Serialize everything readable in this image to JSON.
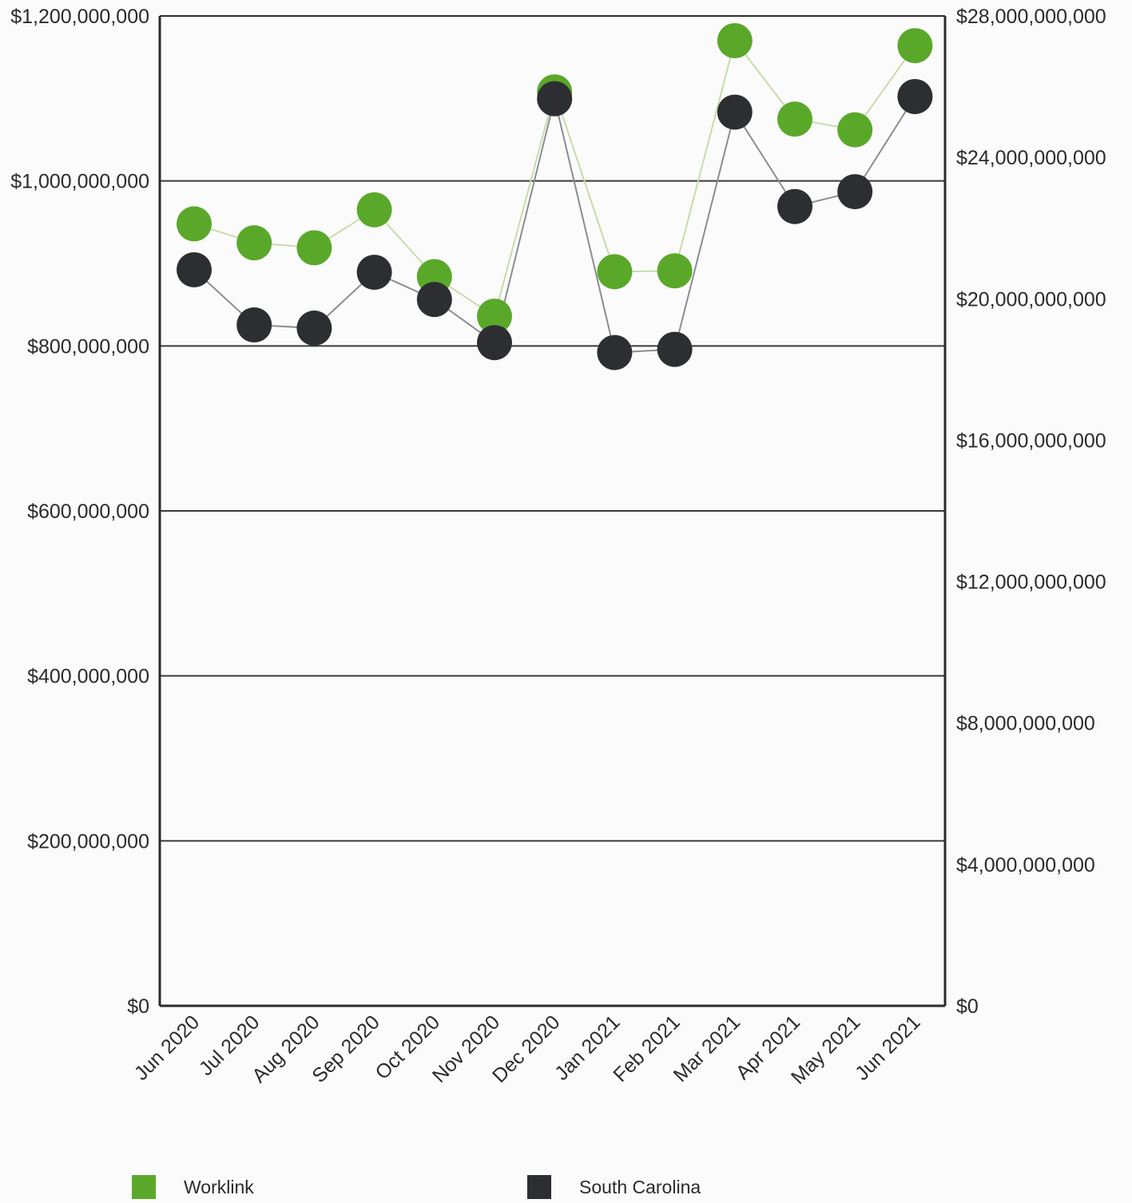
{
  "chart_data": {
    "type": "line",
    "categories": [
      "Jun 2020",
      "Jul 2020",
      "Aug 2020",
      "Sep 2020",
      "Oct 2020",
      "Nov 2020",
      "Dec 2020",
      "Jan 2021",
      "Feb 2021",
      "Mar 2021",
      "Apr 2021",
      "May 2021",
      "Jun 2021"
    ],
    "series": [
      {
        "name": "Worklink",
        "axis": "left",
        "color": "#5aa82a",
        "line_color": "#c8dca8",
        "values": [
          948000000,
          925000000,
          919000000,
          965000000,
          884000000,
          836000000,
          1108000000,
          890000000,
          891000000,
          1170000000,
          1075000000,
          1062000000,
          1164000000
        ]
      },
      {
        "name": "South Carolina",
        "axis": "right",
        "color": "#2c2e32",
        "line_color": "#8a8d93",
        "values": [
          20820000000,
          19260000000,
          19170000000,
          20750000000,
          19980000000,
          18760000000,
          25660000000,
          18480000000,
          18570000000,
          25280000000,
          22610000000,
          23030000000,
          25720000000
        ]
      }
    ],
    "y_left": {
      "ylim": [
        0,
        1200000000
      ],
      "ticks": [
        "$0",
        "$200,000,000",
        "$400,000,000",
        "$600,000,000",
        "$800,000,000",
        "$1,000,000,000",
        "$1,200,000,000"
      ]
    },
    "y_right": {
      "ylim": [
        0,
        28000000000
      ],
      "ticks": [
        "$0",
        "$4,000,000,000",
        "$8,000,000,000",
        "$12,000,000,000",
        "$16,000,000,000",
        "$20,000,000,000",
        "$24,000,000,000",
        "$28,000,000,000"
      ]
    },
    "grid": true,
    "legend_position": "bottom"
  }
}
